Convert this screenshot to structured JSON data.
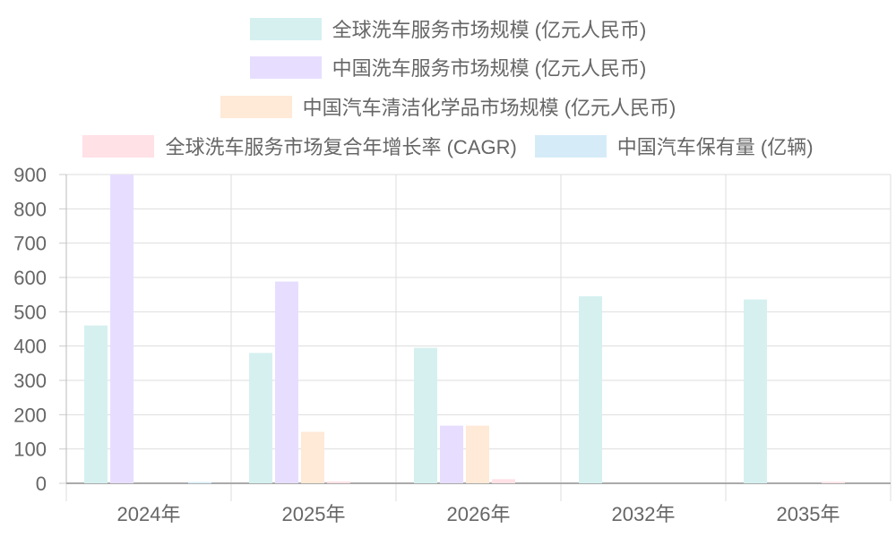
{
  "chart_data": {
    "type": "bar",
    "categories": [
      "2024年",
      "2025年",
      "2026年",
      "2032年",
      "2035年"
    ],
    "series": [
      {
        "name": "全球洗车服务市场规模 (亿元人民币)",
        "color": "#d6f0f0",
        "values": [
          460,
          380,
          395,
          545,
          536
        ]
      },
      {
        "name": "中国洗车服务市场规模 (亿元人民币)",
        "color": "#e7deff",
        "values": [
          900,
          588,
          168,
          null,
          null
        ]
      },
      {
        "name": "中国汽车清洁化学品市场规模 (亿元人民币)",
        "color": "#ffe9d7",
        "values": [
          null,
          150,
          168,
          null,
          null
        ]
      },
      {
        "name": "全球洗车服务市场复合年增长率 (CAGR)",
        "color": "#ffe1e6",
        "values": [
          null,
          5.5,
          12,
          null,
          4.5
        ]
      },
      {
        "name": "中国汽车保有量 (亿辆)",
        "color": "#d5ebf8",
        "values": [
          3.5,
          null,
          null,
          null,
          null
        ]
      }
    ],
    "y_ticks": [
      "0",
      "100",
      "200",
      "300",
      "400",
      "500",
      "600",
      "700",
      "800",
      "900"
    ],
    "ylim": [
      0,
      900
    ],
    "grid": true,
    "legend_position": "top"
  }
}
